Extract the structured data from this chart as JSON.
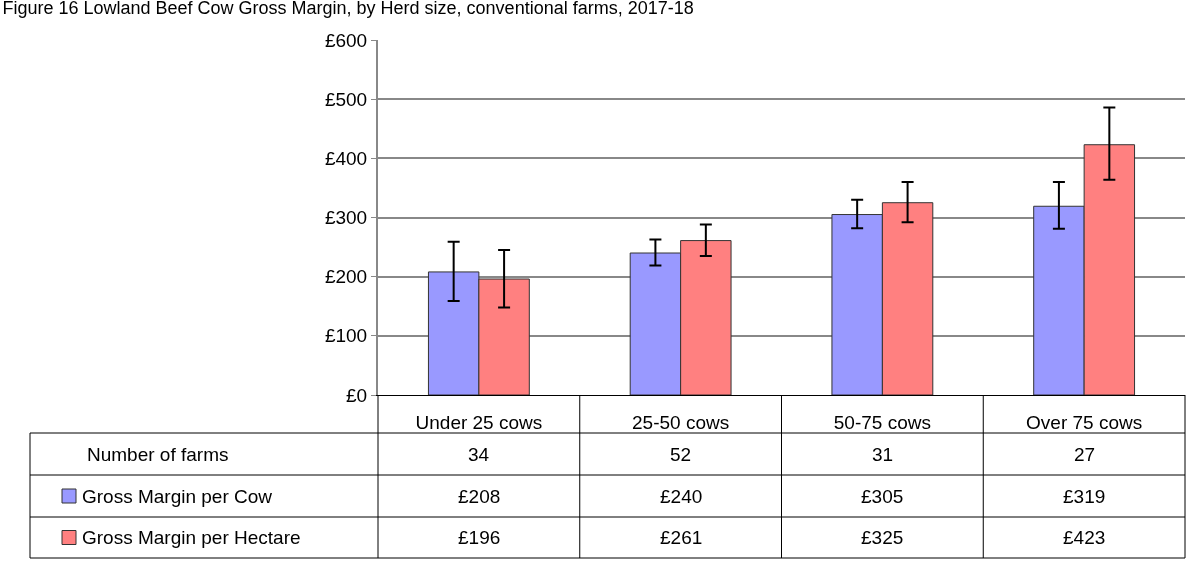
{
  "chart_data": {
    "type": "bar",
    "title": "Figure 16 Lowland Beef Cow Gross Margin, by Herd size, conventional farms, 2017-18",
    "categories": [
      "Under 25 cows",
      "25-50 cows",
      "50-75 cows",
      "Over 75 cows"
    ],
    "series": [
      {
        "name": "Gross Margin per Cow",
        "color": "#9999ff",
        "values": [
          208,
          240,
          305,
          319
        ],
        "value_labels": [
          "£208",
          "£240",
          "£305",
          "£319"
        ],
        "errors": [
          [
            159,
            259
          ],
          [
            219,
            263
          ],
          [
            282,
            330
          ],
          [
            281,
            360
          ]
        ]
      },
      {
        "name": "Gross Margin per Hectare",
        "color": "#ff8080",
        "values": [
          196,
          261,
          325,
          423
        ],
        "value_labels": [
          "£196",
          "£261",
          "£325",
          "£423"
        ],
        "errors": [
          [
            148,
            245
          ],
          [
            235,
            288
          ],
          [
            292,
            360
          ],
          [
            364,
            486
          ]
        ]
      }
    ],
    "annotations": [
      "Number of farms",
      "34",
      "52",
      "31",
      "27"
    ],
    "ylim": [
      0,
      600
    ],
    "yticks": [
      {
        "value": 0,
        "label": "£0"
      },
      {
        "value": 100,
        "label": "£100"
      },
      {
        "value": 200,
        "label": "£200"
      },
      {
        "value": 300,
        "label": "£300"
      },
      {
        "value": 400,
        "label": "£400"
      },
      {
        "value": 500,
        "label": "£500"
      },
      {
        "value": 600,
        "label": "£600"
      }
    ],
    "grid": "y",
    "legend": "bottom left"
  }
}
